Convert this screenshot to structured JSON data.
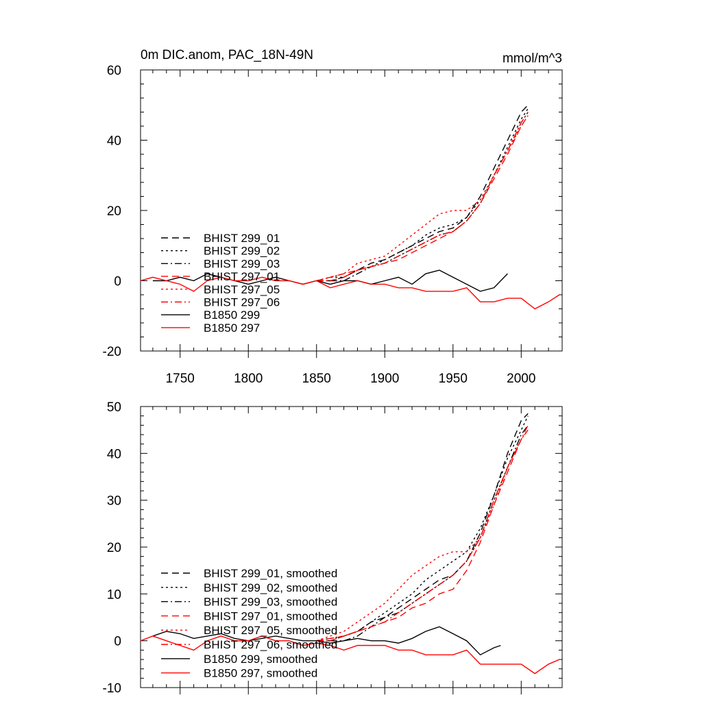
{
  "chart_data": [
    {
      "type": "line",
      "title": "0m DIC.anom, PAC_18N-49N",
      "units": "mmol/m^3",
      "xlim": [
        1721,
        2030
      ],
      "ylim": [
        -20,
        60
      ],
      "xticks": [
        1750,
        1800,
        1850,
        1900,
        1950,
        2000
      ],
      "yticks": [
        -20,
        0,
        20,
        40,
        60
      ],
      "xtick_labels": [
        "1750",
        "1800",
        "1850",
        "1900",
        "1950",
        "2000"
      ],
      "ytick_labels": [
        "-20",
        "0",
        "20",
        "40",
        "60"
      ],
      "legend_position": "lower-left",
      "series": [
        {
          "name": "BHIST 299_01",
          "color": "#000000",
          "dash": "dashed",
          "x": [
            1850,
            1860,
            1870,
            1880,
            1890,
            1900,
            1910,
            1920,
            1930,
            1940,
            1950,
            1960,
            1970,
            1980,
            1990,
            2000,
            2005
          ],
          "y": [
            0,
            0,
            1,
            3,
            5,
            6,
            8,
            10,
            12,
            14,
            15,
            18,
            24,
            32,
            40,
            48,
            50
          ]
        },
        {
          "name": "BHIST 299_02",
          "color": "#000000",
          "dash": "dotted",
          "x": [
            1850,
            1860,
            1870,
            1880,
            1890,
            1900,
            1910,
            1920,
            1930,
            1940,
            1950,
            1960,
            1970,
            1980,
            1990,
            2000,
            2005
          ],
          "y": [
            0,
            1,
            1,
            3,
            4,
            6,
            8,
            10,
            13,
            15,
            16,
            18,
            23,
            30,
            38,
            46,
            49
          ]
        },
        {
          "name": "BHIST 299_03",
          "color": "#000000",
          "dash": "dashdot",
          "x": [
            1850,
            1860,
            1870,
            1880,
            1890,
            1900,
            1910,
            1920,
            1930,
            1940,
            1950,
            1960,
            1970,
            1980,
            1990,
            2000,
            2005
          ],
          "y": [
            0,
            0,
            0,
            2,
            4,
            5,
            7,
            9,
            11,
            13,
            14,
            17,
            22,
            30,
            37,
            45,
            48
          ]
        },
        {
          "name": "BHIST 297_01",
          "color": "#ff0000",
          "dash": "dashed",
          "x": [
            1850,
            1860,
            1870,
            1880,
            1890,
            1900,
            1910,
            1920,
            1930,
            1940,
            1950,
            1960,
            1970,
            1980,
            1990,
            2000,
            2005
          ],
          "y": [
            0,
            1,
            2,
            3,
            4,
            5,
            6,
            8,
            10,
            12,
            14,
            17,
            22,
            29,
            36,
            44,
            47
          ]
        },
        {
          "name": "BHIST 297_05",
          "color": "#ff0000",
          "dash": "dotted",
          "x": [
            1850,
            1860,
            1870,
            1880,
            1890,
            1900,
            1910,
            1920,
            1930,
            1940,
            1950,
            1960,
            1970,
            1980,
            1990,
            2000,
            2005
          ],
          "y": [
            0,
            1,
            2,
            5,
            6,
            7,
            10,
            13,
            16,
            19,
            20,
            20,
            23,
            30,
            37,
            44,
            47
          ]
        },
        {
          "name": "BHIST 297_06",
          "color": "#ff0000",
          "dash": "dashdot",
          "x": [
            1850,
            1860,
            1870,
            1880,
            1890,
            1900,
            1910,
            1920,
            1930,
            1940,
            1950,
            1960,
            1970,
            1980,
            1990,
            2000,
            2005
          ],
          "y": [
            0,
            0,
            1,
            3,
            4,
            5,
            7,
            9,
            11,
            13,
            14,
            17,
            22,
            30,
            37,
            45,
            48
          ]
        },
        {
          "name": "B1850 299",
          "color": "#000000",
          "dash": "solid",
          "x": [
            1730,
            1740,
            1750,
            1760,
            1770,
            1780,
            1790,
            1800,
            1810,
            1820,
            1830,
            1840,
            1850,
            1860,
            1870,
            1880,
            1890,
            1900,
            1910,
            1920,
            1930,
            1940,
            1950,
            1960,
            1970,
            1980,
            1990
          ],
          "y": [
            0,
            0,
            1,
            0,
            2,
            1,
            0,
            -1,
            0,
            1,
            0,
            -1,
            0,
            -1,
            0,
            0,
            -1,
            0,
            1,
            -1,
            2,
            3,
            1,
            -1,
            -3,
            -2,
            2
          ]
        },
        {
          "name": "B1850 297",
          "color": "#ff0000",
          "dash": "solid",
          "x": [
            1721,
            1730,
            1740,
            1750,
            1760,
            1770,
            1780,
            1790,
            1800,
            1810,
            1820,
            1830,
            1840,
            1850,
            1860,
            1870,
            1880,
            1890,
            1900,
            1910,
            1920,
            1930,
            1940,
            1950,
            1960,
            1970,
            1980,
            1990,
            2000,
            2010,
            2020,
            2028
          ],
          "y": [
            0,
            1,
            0,
            -1,
            -3,
            0,
            1,
            0,
            0,
            1,
            0,
            0,
            -1,
            0,
            -2,
            -1,
            0,
            -1,
            -1,
            -2,
            -2,
            -3,
            -3,
            -3,
            -2,
            -6,
            -6,
            -5,
            -5,
            -8,
            -6,
            -4
          ]
        }
      ]
    },
    {
      "type": "line",
      "xlim": [
        1721,
        2030
      ],
      "ylim": [
        -10,
        50
      ],
      "xticks": [
        1750,
        1800,
        1850,
        1900,
        1950,
        2000
      ],
      "yticks": [
        -10,
        0,
        10,
        20,
        30,
        40,
        50
      ],
      "ytick_labels": [
        "-10",
        "0",
        "10",
        "20",
        "30",
        "40",
        "50"
      ],
      "legend_position": "lower-left",
      "series": [
        {
          "name": "BHIST 299_01, smoothed",
          "color": "#000000",
          "dash": "dashed",
          "x": [
            1850,
            1860,
            1870,
            1880,
            1890,
            1900,
            1910,
            1920,
            1930,
            1940,
            1950,
            1960,
            1970,
            1980,
            1990,
            2000,
            2005
          ],
          "y": [
            0,
            0,
            1,
            2,
            4,
            5,
            7,
            9,
            11,
            13,
            14,
            17,
            23,
            31,
            40,
            47,
            48.5
          ]
        },
        {
          "name": "BHIST 299_02, smoothed",
          "color": "#000000",
          "dash": "dotted",
          "x": [
            1850,
            1860,
            1870,
            1880,
            1890,
            1900,
            1910,
            1920,
            1930,
            1940,
            1950,
            1960,
            1970,
            1980,
            1990,
            2000,
            2005
          ],
          "y": [
            0,
            0.5,
            1,
            2,
            4,
            6,
            8,
            10,
            13,
            15,
            17,
            19,
            24,
            31,
            39,
            45,
            48
          ]
        },
        {
          "name": "BHIST 299_03, smoothed",
          "color": "#000000",
          "dash": "dashdot",
          "x": [
            1850,
            1860,
            1870,
            1880,
            1890,
            1900,
            1910,
            1920,
            1930,
            1940,
            1950,
            1960,
            1970,
            1980,
            1990,
            2000,
            2005
          ],
          "y": [
            0,
            0,
            0,
            1,
            3,
            5,
            6,
            8,
            10,
            12,
            14,
            17,
            22,
            30,
            37,
            44,
            46
          ]
        },
        {
          "name": "BHIST 297_01, smoothed",
          "color": "#ff0000",
          "dash": "dashed",
          "x": [
            1850,
            1860,
            1870,
            1880,
            1890,
            1900,
            1910,
            1920,
            1930,
            1940,
            1950,
            1960,
            1970,
            1980,
            1990,
            2000,
            2005
          ],
          "y": [
            0,
            0.5,
            1,
            2,
            3,
            4,
            5,
            7,
            8,
            10,
            11,
            15,
            21,
            29,
            36,
            43,
            45
          ]
        },
        {
          "name": "BHIST 297_05, smoothed",
          "color": "#ff0000",
          "dash": "dotted",
          "x": [
            1850,
            1860,
            1870,
            1880,
            1890,
            1900,
            1910,
            1920,
            1930,
            1940,
            1950,
            1960,
            1970,
            1980,
            1990,
            2000,
            2005
          ],
          "y": [
            0,
            1,
            2,
            4,
            6,
            8,
            11,
            14,
            16,
            18,
            19,
            19,
            22,
            29,
            37,
            43,
            45
          ]
        },
        {
          "name": "BHIST 297_06, smoothed",
          "color": "#ff0000",
          "dash": "dashdot",
          "x": [
            1850,
            1860,
            1870,
            1880,
            1890,
            1900,
            1910,
            1920,
            1930,
            1940,
            1950,
            1960,
            1970,
            1980,
            1990,
            2000,
            2005
          ],
          "y": [
            0,
            0,
            1,
            2,
            3,
            4,
            6,
            8,
            10,
            12,
            14,
            17,
            22,
            30,
            37,
            43,
            46
          ]
        },
        {
          "name": "B1850 299, smoothed",
          "color": "#000000",
          "dash": "solid",
          "x": [
            1730,
            1740,
            1750,
            1760,
            1770,
            1780,
            1790,
            1800,
            1810,
            1820,
            1830,
            1840,
            1850,
            1860,
            1870,
            1880,
            1890,
            1900,
            1910,
            1920,
            1930,
            1940,
            1950,
            1960,
            1970,
            1980,
            1985
          ],
          "y": [
            1,
            2,
            1.5,
            0.5,
            1,
            1.5,
            0.5,
            0,
            0.5,
            1,
            0.5,
            0,
            0,
            -0.5,
            0,
            0.5,
            0,
            0,
            -0.5,
            0.5,
            2,
            3,
            1.5,
            0,
            -3,
            -1.5,
            -1
          ]
        },
        {
          "name": "B1850 297, smoothed",
          "color": "#ff0000",
          "dash": "solid",
          "x": [
            1721,
            1730,
            1740,
            1750,
            1760,
            1770,
            1780,
            1790,
            1800,
            1810,
            1820,
            1830,
            1840,
            1850,
            1860,
            1870,
            1880,
            1890,
            1900,
            1910,
            1920,
            1930,
            1940,
            1950,
            1960,
            1970,
            1980,
            1990,
            2000,
            2010,
            2020,
            2028
          ],
          "y": [
            0,
            1,
            0,
            -1,
            -2,
            0,
            1,
            0,
            0,
            1,
            0,
            0,
            -1,
            -0.5,
            -1,
            -2,
            -1,
            -1,
            -1,
            -2,
            -2,
            -3,
            -3,
            -3,
            -2,
            -5,
            -5,
            -5,
            -5,
            -7,
            -5,
            -4
          ]
        }
      ]
    }
  ]
}
